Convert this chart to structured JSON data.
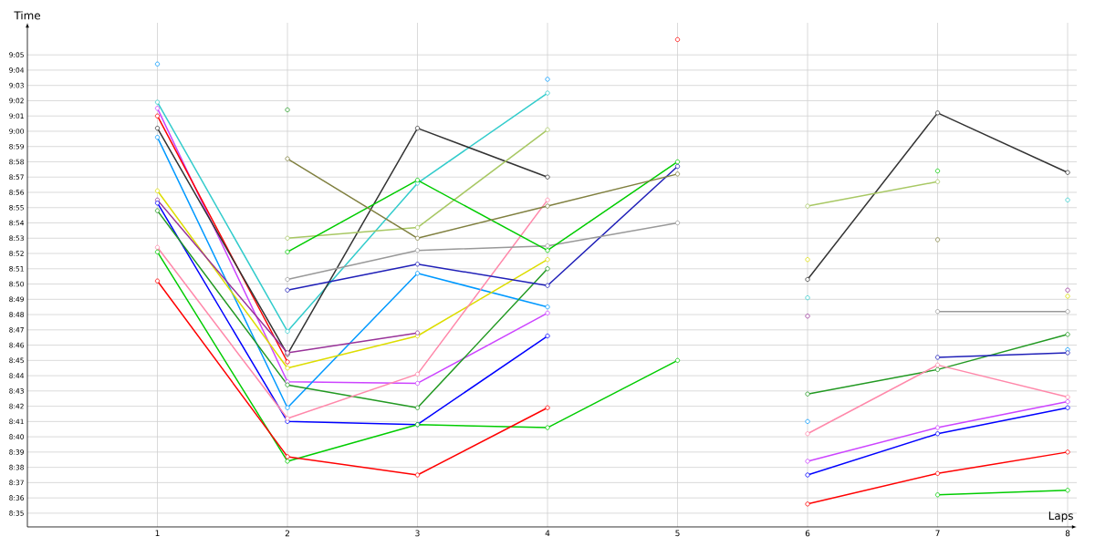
{
  "chart_data": {
    "type": "line",
    "xlabel": "Laps",
    "ylabel": "Time",
    "x": [
      1,
      2,
      3,
      4,
      5,
      6,
      7,
      8
    ],
    "xlim": [
      0,
      8.07
    ],
    "xticks": [
      1,
      2,
      3,
      4,
      5,
      6,
      7,
      8
    ],
    "ylim": [
      514.1,
      547.1
    ],
    "yticks": [
      {
        "value": 515,
        "label": "8:35"
      },
      {
        "value": 516,
        "label": "8:36"
      },
      {
        "value": 517,
        "label": "8:37"
      },
      {
        "value": 518,
        "label": "8:38"
      },
      {
        "value": 519,
        "label": "8:39"
      },
      {
        "value": 520,
        "label": "8:40"
      },
      {
        "value": 521,
        "label": "8:41"
      },
      {
        "value": 522,
        "label": "8:42"
      },
      {
        "value": 523,
        "label": "8:43"
      },
      {
        "value": 524,
        "label": "8:44"
      },
      {
        "value": 525,
        "label": "8:45"
      },
      {
        "value": 526,
        "label": "8:46"
      },
      {
        "value": 527,
        "label": "8:47"
      },
      {
        "value": 528,
        "label": "8:48"
      },
      {
        "value": 529,
        "label": "8:49"
      },
      {
        "value": 530,
        "label": "8:50"
      },
      {
        "value": 531,
        "label": "8:51"
      },
      {
        "value": 532,
        "label": "8:52"
      },
      {
        "value": 533,
        "label": "8:53"
      },
      {
        "value": 534,
        "label": "8:54"
      },
      {
        "value": 535,
        "label": "8:55"
      },
      {
        "value": 536,
        "label": "8:56"
      },
      {
        "value": 537,
        "label": "8:57"
      },
      {
        "value": 538,
        "label": "8:58"
      },
      {
        "value": 539,
        "label": "8:59"
      },
      {
        "value": 540,
        "label": "9:00"
      },
      {
        "value": 541,
        "label": "9:01"
      },
      {
        "value": 542,
        "label": "9:02"
      },
      {
        "value": 543,
        "label": "9:03"
      },
      {
        "value": 544,
        "label": "9:04"
      },
      {
        "value": 545,
        "label": "9:05"
      }
    ],
    "grid": true,
    "marker": "circle",
    "series": [
      {
        "color": "#0099ff",
        "values": [
          544.4,
          null,
          null,
          543.4,
          null,
          null,
          null,
          null
        ]
      },
      {
        "color": "#33cccc",
        "values": [
          541.9,
          526.9,
          536.6,
          542.5,
          null,
          529.1,
          null,
          535.5
        ]
      },
      {
        "color": "#cc44ff",
        "values": [
          541.5,
          523.6,
          523.5,
          528.1,
          null,
          518.4,
          520.6,
          522.3
        ]
      },
      {
        "color": "#ff0000",
        "values": [
          541.0,
          524.9,
          null,
          null,
          546.0,
          null,
          null,
          null
        ]
      },
      {
        "color": "#333333",
        "values": [
          540.2,
          525.4,
          540.2,
          537.0,
          null,
          530.3,
          541.2,
          537.3
        ]
      },
      {
        "color": "#0099ff",
        "values": [
          539.6,
          521.9,
          530.7,
          528.5,
          null,
          521.0,
          null,
          525.7
        ]
      },
      {
        "color": "#dddd00",
        "values": [
          536.1,
          524.5,
          526.6,
          531.6,
          null,
          531.6,
          null,
          529.2
        ]
      },
      {
        "color": "#993399",
        "values": [
          535.5,
          525.5,
          526.8,
          null,
          null,
          527.9,
          null,
          529.6
        ]
      },
      {
        "color": "#0000ff",
        "values": [
          535.3,
          521.0,
          520.8,
          526.6,
          null,
          517.5,
          520.2,
          521.9
        ]
      },
      {
        "color": "#229922",
        "values": [
          534.8,
          523.4,
          521.9,
          531.0,
          null,
          522.8,
          524.4,
          526.7
        ]
      },
      {
        "color": "#ff88aa",
        "values": [
          532.4,
          521.2,
          524.1,
          535.5,
          null,
          520.2,
          524.7,
          522.6
        ]
      },
      {
        "color": "#00cc00",
        "values": [
          532.1,
          518.4,
          520.8,
          520.6,
          525.0,
          null,
          516.2,
          516.5
        ]
      },
      {
        "color": "#ff0000",
        "values": [
          530.2,
          518.7,
          517.5,
          521.9,
          null,
          515.6,
          517.6,
          519.0
        ]
      },
      {
        "color": "#a8c864",
        "values": [
          null,
          533.0,
          533.7,
          540.1,
          null,
          535.1,
          536.7,
          null
        ]
      },
      {
        "color": "#2020b8",
        "values": [
          null,
          529.6,
          531.3,
          529.9,
          537.7,
          null,
          525.2,
          525.5
        ]
      },
      {
        "color": "#999999",
        "values": [
          null,
          530.3,
          532.2,
          532.5,
          534.0,
          null,
          528.2,
          528.2
        ]
      },
      {
        "color": "#00cc00",
        "values": [
          null,
          532.1,
          536.8,
          532.2,
          538.0,
          null,
          537.4,
          null
        ]
      },
      {
        "color": "#229922",
        "values": [
          null,
          541.4,
          null,
          null,
          null,
          null,
          null,
          null
        ]
      },
      {
        "color": "#808040",
        "values": [
          null,
          538.2,
          533.0,
          535.1,
          537.2,
          null,
          532.9,
          null
        ]
      }
    ]
  }
}
